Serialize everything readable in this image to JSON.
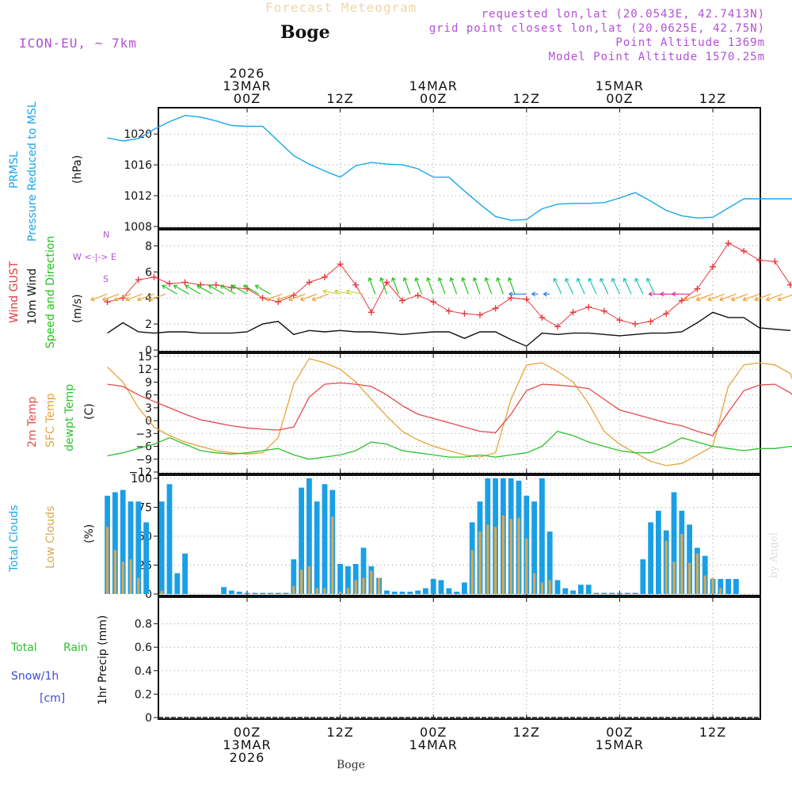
{
  "header": {
    "product_title": "Forecast Meteogram",
    "model": "ICON-EU, ~ 7km",
    "station": "Boge",
    "requested": "requested lon,lat (20.0543E, 42.7413N)",
    "grid": "grid point closest lon,lat (20.0625E, 42.75N)",
    "point_alt": "Point Altitude 1369m",
    "model_alt": "Model Point Altitude 1570.25m"
  },
  "footer": {
    "station": "Boge",
    "credit": "by Angel"
  },
  "colors": {
    "pressure": "#1aa7e8",
    "gust": "#e8383c",
    "wind": "#111111",
    "arrows": "#22c41c",
    "t2m": "#e84a4a",
    "sfc": "#e6a43c",
    "dewpt": "#2cc22c",
    "total_cloud": "#1a9fe6",
    "low_cloud": "#d7a851",
    "purple": "#b24fd6",
    "rain": "#2cc22c",
    "snow": "#3a4cdc"
  },
  "labels": {
    "prmsl_1": "PRMSL",
    "prmsl_2": "Pressure Reduced to MSL",
    "hpa": "(hPa)",
    "gust": "Wind GUST",
    "wind10": "10m Wind",
    "windsd": "Speed and Direction",
    "ms": "(m/s)",
    "compass_w": "W <-|-> E",
    "compass_n": "N",
    "compass_s": "S",
    "t2m": "2m Temp",
    "sfc": "SFC Temp",
    "dewpt": "dewpt Temp",
    "c": "(C)",
    "total_clouds": "Total Clouds",
    "low_clouds": "Low Clouds",
    "pct": "(%)",
    "total": "Total",
    "rain": "Rain",
    "snow": "Snow/1h",
    "cm": "[cm]",
    "precip": "1hr Precip (mm)"
  },
  "chart_data": [
    {
      "type": "line",
      "title": "PRMSL (hPa)",
      "ylabel": "Pressure Reduced to MSL (hPa)",
      "x_hours": [
        -18,
        -16,
        -14,
        -12,
        -10,
        -8,
        -6,
        -4,
        -2,
        0,
        2,
        4,
        6,
        8,
        10,
        11,
        12,
        14,
        16,
        18,
        20,
        22,
        24,
        26,
        28,
        30,
        32,
        34,
        36,
        38,
        40,
        42,
        44,
        46,
        48,
        50,
        52,
        54,
        56,
        58,
        60,
        62,
        64,
        66,
        68,
        70,
        72
      ],
      "values": [
        1019.5,
        1019.1,
        1019.4,
        1020.6,
        1021.6,
        1022.4,
        1022.2,
        1021.7,
        1021.1,
        1021.0,
        1021.0,
        1019.1,
        1017.2,
        1016.1,
        1015.2,
        1014.8,
        1014.4,
        1015.9,
        1016.3,
        1016.1,
        1016.0,
        1015.5,
        1014.4,
        1014.4,
        1012.6,
        1010.9,
        1009.3,
        1008.8,
        1008.9,
        1010.3,
        1010.9,
        1011.0,
        1011.0,
        1011.1,
        1011.7,
        1012.4,
        1011.3,
        1010.1,
        1009.4,
        1009.1,
        1009.2,
        1010.4,
        1011.6,
        1011.6,
        1011.6,
        1011.6,
        1011.6
      ],
      "ylim": [
        1008,
        1023
      ],
      "yticks": [
        1008,
        1012,
        1016,
        1020
      ]
    },
    {
      "type": "line",
      "title": "Wind (m/s)",
      "ylabel": "(m/s)",
      "x_hours": [
        -18,
        -16,
        -14,
        -12,
        -10,
        -8,
        -6,
        -4,
        -2,
        0,
        2,
        4,
        6,
        8,
        10,
        12,
        14,
        16,
        18,
        20,
        22,
        24,
        26,
        28,
        30,
        32,
        34,
        36,
        38,
        40,
        42,
        44,
        46,
        48,
        50,
        52,
        54,
        56,
        58,
        60,
        62,
        64,
        66,
        68,
        70
      ],
      "series": [
        {
          "name": "Wind GUST",
          "values": [
            3.7,
            4.0,
            5.4,
            5.6,
            5.1,
            5.2,
            5.0,
            5.0,
            4.8,
            4.7,
            4.0,
            3.7,
            4.2,
            5.2,
            5.6,
            6.6,
            5.0,
            2.9,
            5.2,
            3.8,
            4.2,
            3.7,
            3.0,
            2.8,
            2.7,
            3.2,
            4.0,
            3.9,
            2.5,
            1.8,
            2.9,
            3.3,
            3.0,
            2.3,
            2.0,
            2.2,
            2.8,
            3.8,
            4.7,
            6.4,
            8.2,
            7.6,
            6.9,
            6.8,
            5.0
          ]
        },
        {
          "name": "10m Wind",
          "values": [
            1.3,
            2.1,
            1.4,
            1.3,
            1.4,
            1.4,
            1.3,
            1.3,
            1.3,
            1.4,
            2.0,
            2.2,
            1.2,
            1.5,
            1.4,
            1.5,
            1.4,
            1.4,
            1.3,
            1.2,
            1.3,
            1.4,
            1.4,
            0.9,
            1.4,
            1.4,
            0.8,
            0.3,
            1.3,
            1.2,
            1.3,
            1.3,
            1.2,
            1.1,
            1.2,
            1.3,
            1.3,
            1.4,
            2.1,
            2.9,
            2.5,
            2.5,
            1.7,
            1.6,
            1.5
          ]
        }
      ],
      "ylim": [
        0,
        9
      ],
      "yticks": [
        0,
        2,
        4,
        6,
        8
      ]
    },
    {
      "type": "line",
      "title": "Temperature (C)",
      "ylabel": "(C)",
      "x_hours": [
        -18,
        -16,
        -14,
        -12,
        -10,
        -8,
        -6,
        -4,
        -2,
        0,
        2,
        4,
        6,
        8,
        10,
        12,
        14,
        16,
        18,
        20,
        22,
        24,
        26,
        28,
        30,
        32,
        34,
        36,
        38,
        40,
        42,
        44,
        46,
        48,
        50,
        52,
        54,
        56,
        58,
        60,
        62,
        64,
        66,
        68,
        70,
        72
      ],
      "series": [
        {
          "name": "2m Temp",
          "values": [
            8.5,
            8.0,
            6.0,
            4.5,
            3.0,
            1.5,
            0.2,
            -0.5,
            -1.2,
            -1.7,
            -2.0,
            -2.2,
            -1.5,
            5.5,
            8.5,
            8.8,
            8.5,
            8.0,
            6.0,
            3.5,
            1.5,
            0.5,
            -0.5,
            -1.5,
            -2.5,
            -2.8,
            1.5,
            7.0,
            8.5,
            8.3,
            8.0,
            7.5,
            5.0,
            2.5,
            1.5,
            0.5,
            -0.5,
            -1.2,
            -2.5,
            -3.5,
            2.0,
            7.0,
            8.3,
            8.5,
            6.5,
            3.0
          ]
        },
        {
          "name": "SFC Temp",
          "values": [
            12.5,
            9.0,
            3.0,
            -1.5,
            -3.5,
            -5.0,
            -6.0,
            -7.0,
            -7.5,
            -7.8,
            -7.5,
            -4.0,
            8.5,
            14.5,
            13.5,
            12.0,
            9.0,
            5.0,
            1.0,
            -2.5,
            -4.5,
            -6.0,
            -7.0,
            -8.0,
            -8.5,
            -7.5,
            5.0,
            13.0,
            13.5,
            11.5,
            9.0,
            4.0,
            -2.5,
            -5.5,
            -7.5,
            -9.5,
            -10.5,
            -10.0,
            -8.0,
            -6.0,
            8.0,
            13.0,
            13.5,
            13.0,
            11.0,
            0.5
          ]
        },
        {
          "name": "dewpt Temp",
          "values": [
            -8.2,
            -7.5,
            -6.5,
            -5.5,
            -4.0,
            -5.5,
            -7.0,
            -7.5,
            -7.8,
            -7.5,
            -7.0,
            -6.5,
            -8.0,
            -9.0,
            -8.5,
            -8.0,
            -7.0,
            -5.0,
            -5.5,
            -7.0,
            -7.5,
            -8.0,
            -8.5,
            -8.5,
            -8.0,
            -8.5,
            -8.0,
            -7.5,
            -6.0,
            -2.5,
            -3.5,
            -5.0,
            -6.0,
            -7.0,
            -7.5,
            -7.5,
            -6.0,
            -4.0,
            -5.0,
            -6.0,
            -6.5,
            -7.0,
            -6.5,
            -6.5,
            -6.0,
            -6.0
          ]
        }
      ],
      "ylim": [
        -12,
        15
      ],
      "yticks": [
        -12,
        -9,
        -6,
        -3,
        0,
        3,
        6,
        9,
        12,
        15
      ]
    },
    {
      "type": "bar",
      "title": "Clouds (%)",
      "ylabel": "(%)",
      "x_hours": [
        -18,
        -17,
        -16,
        -15,
        -14,
        -13,
        -12,
        -11,
        -10,
        -9,
        -8,
        -7,
        -6,
        -5,
        -4,
        -3,
        -2,
        -1,
        0,
        1,
        2,
        3,
        4,
        5,
        6,
        7,
        8,
        9,
        10,
        11,
        12,
        13,
        14,
        15,
        16,
        17,
        18,
        19,
        20,
        21,
        22,
        23,
        24,
        25,
        26,
        27,
        28,
        29,
        30,
        31,
        32,
        33,
        34,
        35,
        36,
        37,
        38,
        39,
        40,
        41,
        42,
        43,
        44,
        45,
        46,
        47,
        48,
        49,
        50,
        51,
        52,
        53,
        54,
        55,
        56,
        57,
        58,
        59,
        60,
        61,
        62,
        63,
        64,
        65,
        66,
        67,
        68,
        69,
        70,
        71,
        72,
        73
      ],
      "series": [
        {
          "name": "Total Clouds",
          "values": [
            85,
            88,
            90,
            80,
            80,
            62,
            0,
            80,
            95,
            18,
            35,
            0,
            0,
            0,
            0,
            6,
            3,
            2,
            1,
            1,
            1,
            1,
            1,
            1,
            30,
            92,
            100,
            80,
            95,
            90,
            26,
            24,
            26,
            40,
            24,
            14,
            3,
            2,
            2,
            2,
            3,
            5,
            13,
            12,
            5,
            2,
            10,
            62,
            80,
            100,
            100,
            100,
            100,
            98,
            85,
            80,
            100,
            54,
            12,
            5,
            3,
            8,
            8,
            1,
            1,
            1,
            1,
            1,
            1,
            30,
            62,
            72,
            55,
            88,
            72,
            60,
            40,
            33,
            13,
            13,
            13,
            13
          ]
        },
        {
          "name": "Low Clouds",
          "values": [
            58,
            38,
            28,
            30,
            14,
            0,
            0,
            3,
            0,
            0,
            0,
            0,
            0,
            0,
            0,
            0,
            0,
            0,
            0,
            0,
            0,
            0,
            0,
            0,
            7,
            21,
            24,
            5,
            5,
            67,
            2,
            5,
            12,
            14,
            20,
            14,
            0,
            0,
            0,
            0,
            0,
            0,
            0,
            0,
            0,
            0,
            0,
            38,
            54,
            60,
            58,
            68,
            65,
            66,
            48,
            18,
            10,
            12,
            0,
            0,
            0,
            0,
            0,
            0,
            0,
            0,
            0,
            0,
            0,
            0,
            0,
            0,
            46,
            28,
            52,
            27,
            35,
            16,
            14,
            5,
            0,
            0
          ]
        }
      ],
      "ylim": [
        0,
        100
      ],
      "yticks": [
        0,
        25,
        50,
        75,
        100
      ]
    },
    {
      "type": "bar",
      "title": "1hr Precip (mm)",
      "ylabel": "1hr Precip (mm)",
      "x_hours": [
        -18,
        72
      ],
      "series": [
        {
          "name": "Total Rain",
          "values": [
            0,
            0
          ]
        },
        {
          "name": "Snow/1h",
          "values": [
            0,
            0
          ]
        }
      ],
      "ylim": [
        0,
        1
      ],
      "yticks": [
        0,
        0.2,
        0.4,
        0.6,
        0.8
      ]
    }
  ],
  "time_axis": {
    "top": [
      {
        "hour": 0,
        "lines": [
          "2026",
          "13MAR",
          "00Z"
        ]
      },
      {
        "hour": 12,
        "lines": [
          "12Z"
        ]
      },
      {
        "hour": 24,
        "lines": [
          "14MAR",
          "00Z"
        ]
      },
      {
        "hour": 36,
        "lines": [
          "12Z"
        ]
      },
      {
        "hour": 48,
        "lines": [
          "15MAR",
          "00Z"
        ]
      },
      {
        "hour": 60,
        "lines": [
          "12Z"
        ]
      }
    ],
    "bottom": [
      {
        "hour": 0,
        "lines": [
          "00Z",
          "13MAR",
          "2026"
        ]
      },
      {
        "hour": 12,
        "lines": [
          "12Z"
        ]
      },
      {
        "hour": 24,
        "lines": [
          "00Z",
          "14MAR"
        ]
      },
      {
        "hour": 36,
        "lines": [
          "12Z"
        ]
      },
      {
        "hour": 48,
        "lines": [
          "00Z",
          "15MAR"
        ]
      },
      {
        "hour": 60,
        "lines": [
          "12Z"
        ]
      }
    ]
  }
}
